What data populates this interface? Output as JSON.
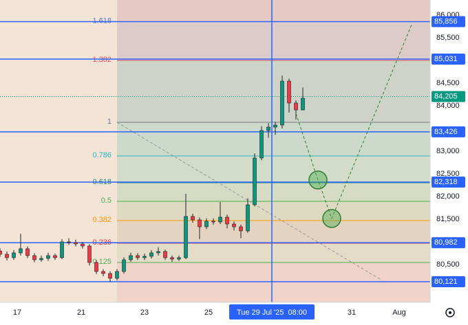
{
  "chart_data": {
    "type": "candlestick",
    "xlim": [
      0,
      62.5
    ],
    "ylim": [
      79667,
      86333
    ],
    "xticks": [
      {
        "value": 2.5,
        "label": "17"
      },
      {
        "value": 11.8,
        "label": "21"
      },
      {
        "value": 21,
        "label": "23"
      },
      {
        "value": 30.3,
        "label": "25"
      },
      {
        "value": 51.1,
        "label": "31"
      },
      {
        "value": 58,
        "label": "Aug"
      }
    ],
    "yticks": [
      {
        "value": 80500,
        "label": "80,500"
      },
      {
        "value": 81500,
        "label": "81,500"
      },
      {
        "value": 82000,
        "label": "82,000"
      },
      {
        "value": 82500,
        "label": "82,500"
      },
      {
        "value": 83000,
        "label": "83,000"
      },
      {
        "value": 84000,
        "label": "84,000"
      },
      {
        "value": 84500,
        "label": "84,500"
      },
      {
        "value": 85500,
        "label": "85,500"
      },
      {
        "value": 86000,
        "label": "86,000"
      }
    ],
    "up_color": "#089981",
    "down_color": "#f23645",
    "candles": {
      "x": [
        0,
        1,
        2,
        3,
        4,
        5,
        6,
        7,
        8,
        9,
        10,
        11,
        12,
        13,
        14,
        15,
        16,
        17,
        18,
        19,
        20,
        21,
        22,
        23,
        24,
        25,
        26,
        27,
        28,
        29,
        30,
        31,
        32,
        33,
        34,
        35,
        36,
        37,
        38,
        39,
        40,
        41,
        42,
        43,
        44
      ],
      "open": [
        80800,
        80727,
        80652,
        80758,
        80849,
        80697,
        80606,
        80636,
        80697,
        80652,
        81000,
        80985,
        80955,
        80909,
        80546,
        80348,
        80303,
        80197,
        80348,
        80606,
        80697,
        80652,
        80682,
        80758,
        80788,
        80652,
        80621,
        80652,
        81561,
        81485,
        81333,
        81455,
        81439,
        81545,
        81394,
        81333,
        81242,
        81818,
        82849,
        83455,
        83530,
        83576,
        84545,
        84061,
        83909
      ],
      "high": [
        80860,
        80790,
        80820,
        81180,
        80900,
        80750,
        80700,
        80760,
        80740,
        81060,
        81080,
        81050,
        81000,
        80950,
        80600,
        80400,
        80350,
        80400,
        80660,
        80760,
        80750,
        80740,
        80820,
        80880,
        80830,
        80700,
        80700,
        82061,
        81620,
        81540,
        81520,
        81520,
        81880,
        81600,
        81450,
        81380,
        81960,
        82950,
        83550,
        83620,
        83650,
        84667,
        84600,
        84120,
        84400
      ],
      "low": [
        80670,
        80590,
        80600,
        80700,
        80640,
        80550,
        80560,
        80580,
        80600,
        80620,
        80930,
        80900,
        80850,
        80480,
        80290,
        80240,
        80120,
        80150,
        80300,
        80560,
        80600,
        80600,
        80630,
        80700,
        80600,
        80560,
        80580,
        80620,
        81420,
        81060,
        81280,
        81380,
        81390,
        81300,
        81250,
        81080,
        81200,
        81780,
        82800,
        83300,
        83360,
        83500,
        83850,
        83700,
        83900
      ],
      "close": [
        80727,
        80652,
        80758,
        80849,
        80697,
        80606,
        80636,
        80697,
        80652,
        81000,
        80985,
        80955,
        80909,
        80546,
        80348,
        80303,
        80197,
        80348,
        80606,
        80697,
        80652,
        80682,
        80758,
        80788,
        80652,
        80621,
        80652,
        81561,
        81485,
        81333,
        81455,
        81439,
        81545,
        81394,
        81333,
        81242,
        81818,
        82849,
        83455,
        83530,
        83576,
        84545,
        84061,
        83909,
        84167
      ]
    },
    "fib_start_x": 17,
    "fib_levels": [
      {
        "label": "1.618",
        "value": 85856,
        "color": "#5b7bd5",
        "band": "#e6c9c3"
      },
      {
        "label": "1.382",
        "value": 85000,
        "color": "#e0506a",
        "band": "#dccbc8"
      },
      {
        "label": "1",
        "value": 83636,
        "color": "#787b86",
        "band": "#cdd3c8"
      },
      {
        "label": "0.786",
        "value": 82894,
        "color": "#26b5c9",
        "band": "#cddacb"
      },
      {
        "label": "0.618",
        "value": 82303,
        "color": "#268a80",
        "band": "#d2dcc8"
      },
      {
        "label": "0.5",
        "value": 81894,
        "color": "#4caf50",
        "band": "#d6dcc4"
      },
      {
        "label": "0.382",
        "value": 81470,
        "color": "#ff9800",
        "band": "#ded9c1"
      },
      {
        "label": "0.236",
        "value": 80970,
        "color": "#f23645",
        "band": "#e5d3c1"
      },
      {
        "label": "0.125",
        "value": 80546,
        "color": "#4caf50",
        "band": "#e3dcc6"
      }
    ],
    "fib_bottom_band": "#efd3c8",
    "background": "#f3e4d6",
    "price_lines": [
      {
        "value": 85856,
        "label": "85,856"
      },
      {
        "value": 85031,
        "label": "85,031"
      },
      {
        "value": 83426,
        "label": "83,426"
      },
      {
        "value": 82318,
        "label": "82,318"
      },
      {
        "value": 80982,
        "label": "80,982"
      },
      {
        "value": 80121,
        "label": "80,121"
      }
    ],
    "price_line_color": "#2962ff",
    "last_price": {
      "value": 84205,
      "label": "84,205",
      "color": "#089981"
    },
    "projection": {
      "x": [
        43,
        46.2,
        48.2,
        59.8
      ],
      "y": [
        83832,
        82364,
        81515,
        85788
      ],
      "color": "#2e7d32"
    },
    "trend_line": {
      "x": [
        17,
        55.5
      ],
      "y": [
        83636,
        80152
      ],
      "color": "#9598a1"
    },
    "crosshair": {
      "x": 39.5,
      "label": "Tue 29 Jul '25  08:00",
      "color": "#2962ff"
    }
  }
}
